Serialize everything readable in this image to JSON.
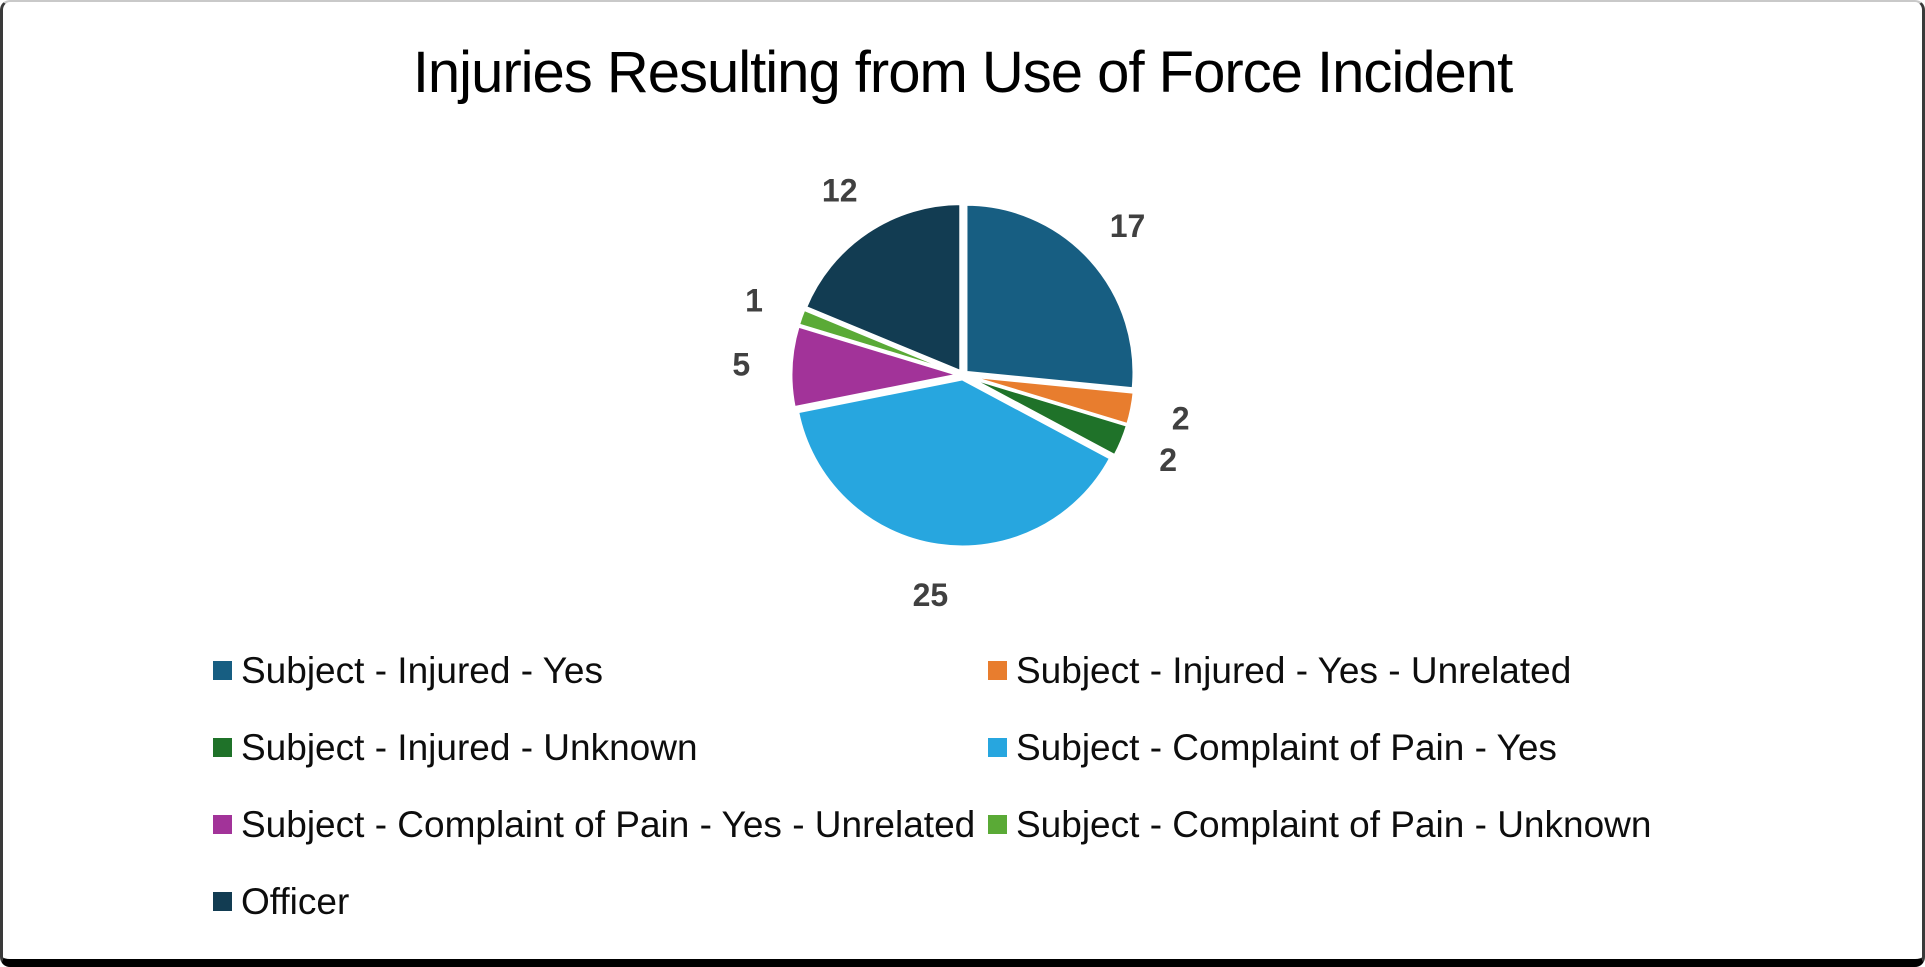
{
  "chart_data": {
    "type": "pie",
    "title": "Injuries Resulting from Use of Force Incident",
    "total": 64,
    "start_angle_deg": 0,
    "direction": "clockwise",
    "data_label_color": "#404040",
    "legend_position": "bottom",
    "legend_columns": 2,
    "slices": [
      {
        "label": "Subject - Injured - Yes",
        "value": 17,
        "color": "#175E82"
      },
      {
        "label": "Subject - Injured - Yes - Unrelated",
        "value": 2,
        "color": "#E87D2E"
      },
      {
        "label": "Subject - Injured - Unknown",
        "value": 2,
        "color": "#1F7229"
      },
      {
        "label": "Subject - Complaint of Pain - Yes",
        "value": 25,
        "color": "#27A6DF"
      },
      {
        "label": "Subject - Complaint of Pain - Yes - Unrelated",
        "value": 5,
        "color": "#A23399"
      },
      {
        "label": "Subject - Complaint of Pain - Unknown",
        "value": 1,
        "color": "#5AAA36"
      },
      {
        "label": "Officer",
        "value": 12,
        "color": "#123C52"
      }
    ]
  }
}
